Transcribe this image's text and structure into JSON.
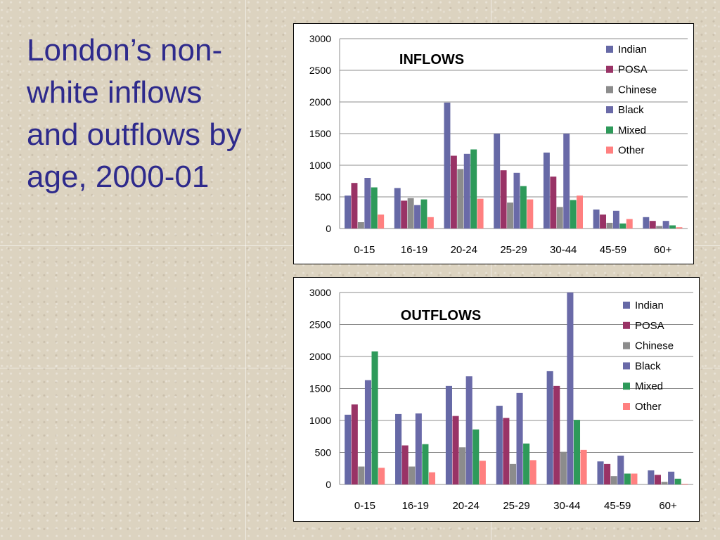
{
  "title": "London’s non-white inflows and outflows by age, 2000-01",
  "colors": {
    "Indian": "#6669a6",
    "POSA": "#993366",
    "Chinese": "#8c8c8c",
    "Black": "#6a6aa8",
    "Mixed": "#2e9a5a",
    "Other": "#ff8080"
  },
  "chart_data": [
    {
      "type": "bar",
      "title": "INFLOWS",
      "categories": [
        "0-15",
        "16-19",
        "20-24",
        "25-29",
        "30-44",
        "45-59",
        "60+"
      ],
      "ylim": [
        0,
        3000
      ],
      "yticks": [
        0,
        500,
        1000,
        1500,
        2000,
        2500,
        3000
      ],
      "grid": true,
      "legend": "top-right",
      "series": [
        {
          "name": "Indian",
          "values": [
            520,
            640,
            1990,
            1500,
            1200,
            300,
            180
          ]
        },
        {
          "name": "POSA",
          "values": [
            720,
            440,
            1150,
            920,
            820,
            220,
            120
          ]
        },
        {
          "name": "Chinese",
          "values": [
            100,
            480,
            940,
            410,
            340,
            90,
            40
          ]
        },
        {
          "name": "Black",
          "values": [
            800,
            370,
            1180,
            880,
            1500,
            280,
            120
          ]
        },
        {
          "name": "Mixed",
          "values": [
            650,
            460,
            1250,
            670,
            450,
            80,
            50
          ]
        },
        {
          "name": "Other",
          "values": [
            220,
            180,
            470,
            460,
            520,
            150,
            20
          ]
        }
      ]
    },
    {
      "type": "bar",
      "title": "OUTFLOWS",
      "categories": [
        "0-15",
        "16-19",
        "20-24",
        "25-29",
        "30-44",
        "45-59",
        "60+"
      ],
      "ylim": [
        0,
        3000
      ],
      "yticks": [
        0,
        500,
        1000,
        1500,
        2000,
        2500,
        3000
      ],
      "grid": true,
      "legend": "top-right",
      "series": [
        {
          "name": "Indian",
          "values": [
            1090,
            1100,
            1540,
            1230,
            1770,
            360,
            220
          ]
        },
        {
          "name": "POSA",
          "values": [
            1250,
            610,
            1070,
            1040,
            1540,
            320,
            150
          ]
        },
        {
          "name": "Chinese",
          "values": [
            280,
            280,
            580,
            320,
            510,
            130,
            40
          ]
        },
        {
          "name": "Black",
          "values": [
            1630,
            1110,
            1690,
            1430,
            3000,
            450,
            200
          ]
        },
        {
          "name": "Mixed",
          "values": [
            2080,
            630,
            860,
            640,
            1010,
            170,
            90
          ]
        },
        {
          "name": "Other",
          "values": [
            260,
            190,
            370,
            380,
            540,
            170,
            10
          ]
        }
      ]
    }
  ]
}
